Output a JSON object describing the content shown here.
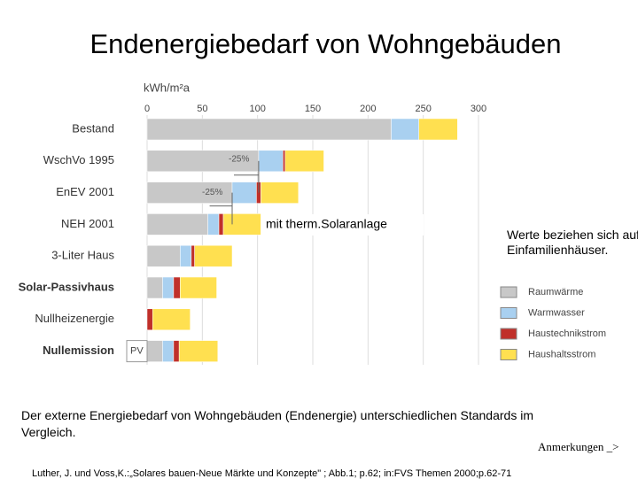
{
  "chart_data": {
    "type": "bar",
    "orientation": "horizontal",
    "stacked": true,
    "title": "Endenergiebedarf von Wohngebäuden",
    "x_label": "kWh/m²a",
    "categories": [
      "Bestand",
      "WschVo 1995",
      "EnEV 2001",
      "NEH 2001",
      "3-Liter Haus",
      "Solar-Passivhaus",
      "Nullheizenergie",
      "Nullemission"
    ],
    "series": [
      {
        "name": "Raumwärme",
        "color": "#c8c8c8",
        "values": [
          221,
          101,
          77,
          55,
          30,
          14,
          0,
          14
        ]
      },
      {
        "name": "Warmwasser",
        "color": "#a9d0f0",
        "values": [
          25,
          22,
          22,
          10,
          10,
          10,
          0,
          10
        ]
      },
      {
        "name": "Haustechnikstrom",
        "color": "#c0302a",
        "values": [
          0,
          2,
          4,
          4,
          3,
          6,
          5,
          5
        ]
      },
      {
        "name": "Haushaltsstrom",
        "color": "#ffe050",
        "values": [
          35,
          35,
          34,
          34,
          34,
          33,
          34,
          35
        ]
      }
    ],
    "xlim": [
      0,
      300
    ],
    "xticks": [
      0,
      50,
      100,
      150,
      200,
      250,
      300
    ],
    "grid": true,
    "annotations": [
      "-25%",
      "-25%",
      "mit therm.Solaranlage",
      "PV"
    ]
  },
  "note": "Werte beziehen sich auf Einfamilienhäuser.",
  "caption": "Der externe Energiebedarf  von Wohngebäuden (Endenergie) unterschiedlichen Standards im Vergleich.",
  "link": "Anmerkungen _>",
  "citation": "Luther, J. und Voss,K.:„Solares bauen-Neue Märkte und Konzepte\" ; Abb.1; p.62; in:FVS Themen 2000;p.62-71"
}
